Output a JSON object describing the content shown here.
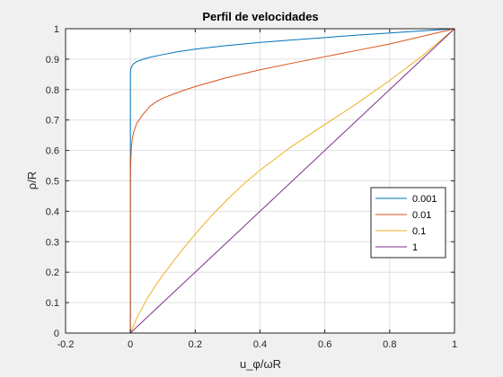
{
  "chart_data": {
    "type": "line",
    "title": "Perfil de velocidades",
    "xlabel": "u_φ/ωR",
    "ylabel": "ρ/R",
    "xlim": [
      -0.2,
      1
    ],
    "ylim": [
      0,
      1
    ],
    "xticks": [
      "-0.2",
      "0",
      "0.2",
      "0.4",
      "0.6",
      "0.8",
      "1"
    ],
    "yticks": [
      "0",
      "0.1",
      "0.2",
      "0.3",
      "0.4",
      "0.5",
      "0.6",
      "0.7",
      "0.8",
      "0.9",
      "1"
    ],
    "grid": true,
    "legend_position": "right",
    "series": [
      {
        "name": "0.001",
        "color": "#0072BD",
        "x": [
          0,
          0,
          0.0005,
          0.002,
          0.005,
          0.01,
          0.02,
          0.04,
          0.06,
          0.1,
          0.15,
          0.2,
          0.3,
          0.4,
          0.5,
          0.6,
          0.7,
          0.8,
          0.9,
          1.0
        ],
        "y": [
          0,
          0.85,
          0.86,
          0.87,
          0.878,
          0.885,
          0.892,
          0.9,
          0.906,
          0.915,
          0.925,
          0.933,
          0.945,
          0.955,
          0.963,
          0.971,
          0.979,
          0.986,
          0.993,
          1.0
        ]
      },
      {
        "name": "0.01",
        "color": "#D95319",
        "x": [
          0,
          0,
          0.001,
          0.003,
          0.006,
          0.01,
          0.02,
          0.04,
          0.06,
          0.08,
          0.1,
          0.15,
          0.2,
          0.3,
          0.4,
          0.5,
          0.6,
          0.7,
          0.8,
          0.9,
          1.0
        ],
        "y": [
          0,
          0.5,
          0.56,
          0.61,
          0.64,
          0.66,
          0.69,
          0.72,
          0.745,
          0.76,
          0.772,
          0.792,
          0.81,
          0.84,
          0.865,
          0.887,
          0.908,
          0.929,
          0.95,
          0.975,
          1.0
        ]
      },
      {
        "name": "0.1",
        "color": "#EDB120",
        "x": [
          0,
          0.02,
          0.05,
          0.08,
          0.1,
          0.15,
          0.2,
          0.25,
          0.3,
          0.35,
          0.4,
          0.5,
          0.6,
          0.7,
          0.8,
          0.9,
          1.0
        ],
        "y": [
          0,
          0.05,
          0.11,
          0.16,
          0.19,
          0.26,
          0.325,
          0.385,
          0.44,
          0.49,
          0.535,
          0.615,
          0.685,
          0.755,
          0.83,
          0.91,
          1.0
        ]
      },
      {
        "name": "1",
        "color": "#7E2F8E",
        "x": [
          0,
          1
        ],
        "y": [
          0,
          1
        ]
      }
    ]
  }
}
